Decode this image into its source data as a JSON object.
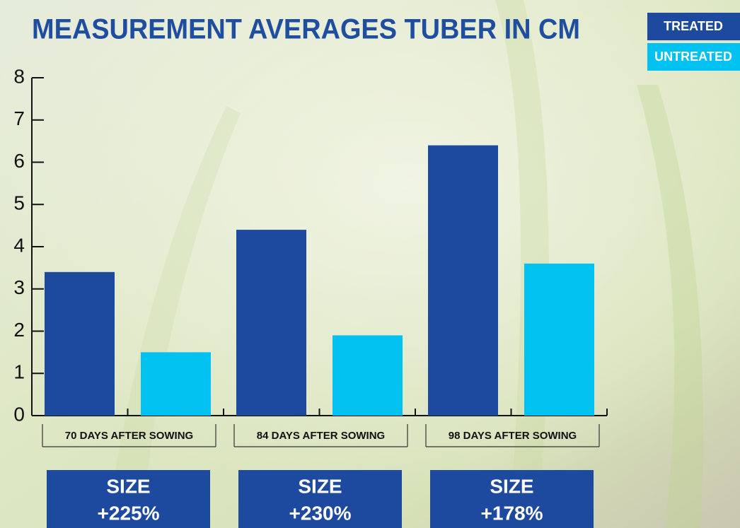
{
  "chart_data": {
    "type": "bar",
    "title": "MEASUREMENT AVERAGES TUBER IN CM",
    "categories": [
      "70 DAYS AFTER SOWING",
      "84 DAYS AFTER SOWING",
      "98 DAYS AFTER SOWING"
    ],
    "series": [
      {
        "name": "TREATED",
        "color": "#1d4a9f",
        "values": [
          3.4,
          4.4,
          6.4
        ]
      },
      {
        "name": "UNTREATED",
        "color": "#00c1ef",
        "values": [
          1.5,
          1.9,
          3.6
        ]
      }
    ],
    "ylim": [
      0,
      8
    ],
    "yticks": [
      0,
      1,
      2,
      3,
      4,
      5,
      6,
      7,
      8
    ],
    "annotations": [
      [
        "SIZE",
        "+225%"
      ],
      [
        "SIZE",
        "+230%"
      ],
      [
        "SIZE",
        "+178%"
      ]
    ]
  }
}
